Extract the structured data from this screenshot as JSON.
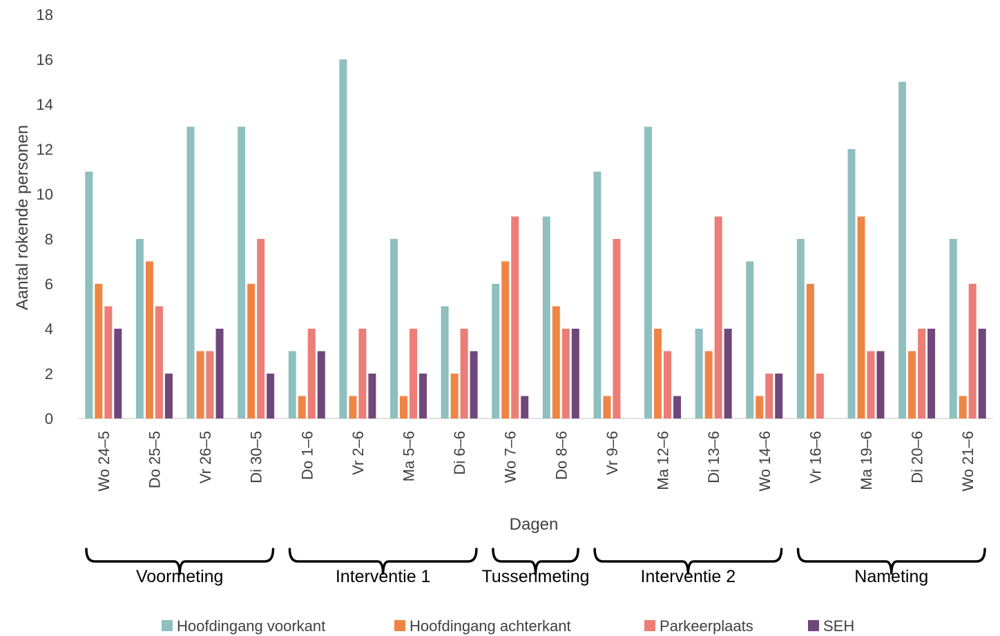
{
  "chart_data": {
    "type": "bar",
    "xlabel": "Dagen",
    "ylabel": "Aantal rokende personen",
    "ylim": [
      0,
      18
    ],
    "yticks": [
      0,
      2,
      4,
      6,
      8,
      10,
      12,
      14,
      16,
      18
    ],
    "grid": false,
    "legend_position": "bottom",
    "categories": [
      "Wo 24-5",
      "Do 25-5",
      "Vr 26-5",
      "Di 30-5",
      "Do 1-6",
      "Vr 2-6",
      "Ma 5-6",
      "Di 6-6",
      "Wo 7-6",
      "Do 8-6",
      "Vr 9-6",
      "Ma 12-6",
      "Di 13-6",
      "Wo 14-6",
      "Vr 16-6",
      "Ma 19-6",
      "Di 20-6",
      "Wo 21-6"
    ],
    "series": [
      {
        "name": "Hoofdingang voorkant",
        "color": "#8fbfbf",
        "values": [
          11,
          8,
          13,
          13,
          3,
          16,
          8,
          5,
          6,
          9,
          11,
          13,
          4,
          7,
          8,
          12,
          15,
          8
        ]
      },
      {
        "name": "Hoofdingang achterkant",
        "color": "#ef8545",
        "values": [
          6,
          7,
          3,
          6,
          1,
          1,
          1,
          2,
          7,
          5,
          1,
          4,
          3,
          1,
          6,
          9,
          3,
          1
        ]
      },
      {
        "name": "Parkeerplaats",
        "color": "#ec7d77",
        "values": [
          5,
          5,
          3,
          8,
          4,
          4,
          4,
          4,
          9,
          4,
          8,
          3,
          9,
          2,
          2,
          3,
          4,
          6
        ]
      },
      {
        "name": "SEH",
        "color": "#6f477a",
        "values": [
          4,
          2,
          4,
          2,
          3,
          2,
          2,
          3,
          1,
          4,
          0,
          1,
          4,
          2,
          0,
          3,
          4,
          4
        ]
      }
    ],
    "phases": [
      {
        "label": "Voormeting",
        "from": 0,
        "to": 3
      },
      {
        "label": "Interventie 1",
        "from": 4,
        "to": 7
      },
      {
        "label": "Tussenmeting",
        "from": 8,
        "to": 9
      },
      {
        "label": "Interventie 2",
        "from": 10,
        "to": 13
      },
      {
        "label": "Nameting",
        "from": 14,
        "to": 17
      }
    ]
  }
}
